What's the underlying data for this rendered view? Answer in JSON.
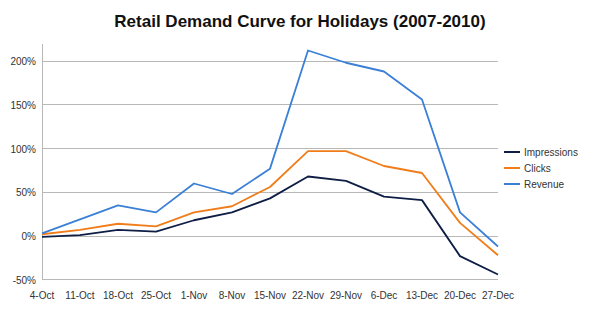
{
  "chart_data": {
    "type": "line",
    "title": "Retail Demand Curve for Holidays (2007-2010)",
    "categories": [
      "4-Oct",
      "11-Oct",
      "18-Oct",
      "25-Oct",
      "1-Nov",
      "8-Nov",
      "15-Nov",
      "22-Nov",
      "29-Nov",
      "6-Dec",
      "13-Dec",
      "20-Dec",
      "27-Dec"
    ],
    "series": [
      {
        "name": "Impressions",
        "color": "#0f1e45",
        "values": [
          -1,
          1,
          7,
          5,
          18,
          27,
          43,
          68,
          63,
          45,
          41,
          -23,
          -44
        ]
      },
      {
        "name": "Clicks",
        "color": "#f07d1a",
        "values": [
          2,
          7,
          14,
          11,
          27,
          34,
          56,
          97,
          97,
          80,
          72,
          15,
          -22
        ]
      },
      {
        "name": "Revenue",
        "color": "#3a80d6",
        "values": [
          3,
          19,
          35,
          27,
          60,
          48,
          77,
          212,
          198,
          188,
          156,
          27,
          -12
        ]
      }
    ],
    "ylim": [
      -50,
      220
    ],
    "yticks": [
      {
        "value": -50,
        "label": "-50%"
      },
      {
        "value": 0,
        "label": "0%"
      },
      {
        "value": 50,
        "label": "50%"
      },
      {
        "value": 100,
        "label": "100%"
      },
      {
        "value": 150,
        "label": "150%"
      },
      {
        "value": 200,
        "label": "200%"
      }
    ],
    "grid": true,
    "legend": "right"
  }
}
